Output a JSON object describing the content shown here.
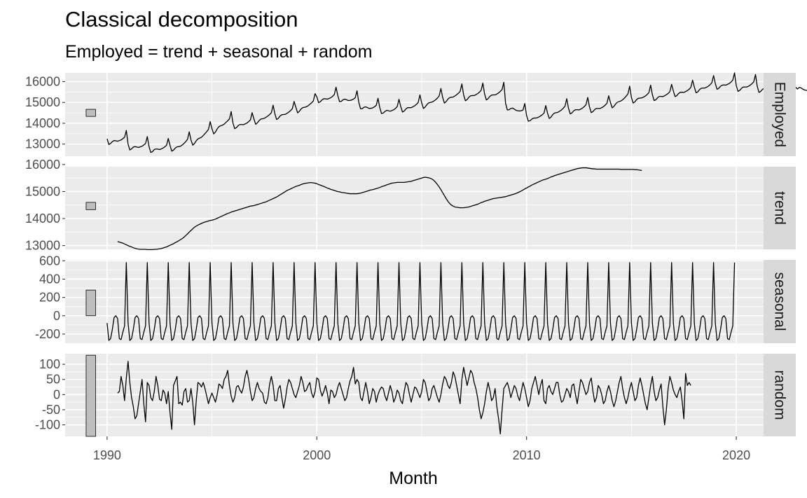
{
  "title": "Classical decomposition",
  "subtitle": "Employed = trend + seasonal + random",
  "chart_data": {
    "type": "line",
    "title": "Classical decomposition",
    "subtitle": "Employed = trend + seasonal + random",
    "xlabel": "Month",
    "xlim": [
      1988.0,
      2021.3
    ],
    "x_ticks": [
      1990,
      2000,
      2010,
      2020
    ],
    "x_tick_labels": [
      "1990",
      "2000",
      "2010",
      "2020"
    ],
    "grid": true,
    "panels": [
      {
        "name": "Employed",
        "ylim": [
          12420,
          16420
        ],
        "y_ticks": [
          13000,
          14000,
          15000,
          16000
        ],
        "y_tick_labels": [
          "13000",
          "14000",
          "15000",
          "16000"
        ],
        "scale_bar": [
          14330,
          14670
        ],
        "start": 1990.0,
        "step": 0.08333,
        "values": [
          13260,
          12980,
          13030,
          13120,
          13170,
          13160,
          13140,
          13170,
          13200,
          13260,
          13330,
          13660,
          13000,
          12720,
          12770,
          12860,
          12880,
          12860,
          12840,
          12870,
          12900,
          12960,
          13030,
          13360,
          12880,
          12600,
          12640,
          12740,
          12770,
          12760,
          12740,
          12770,
          12810,
          12870,
          12940,
          13270,
          12940,
          12660,
          12710,
          12810,
          12870,
          12880,
          12900,
          12960,
          13030,
          13120,
          13230,
          13590,
          13200,
          12950,
          13030,
          13160,
          13250,
          13290,
          13330,
          13410,
          13500,
          13600,
          13710,
          14080,
          13740,
          13490,
          13580,
          13730,
          13840,
          13880,
          13910,
          13960,
          14040,
          14120,
          14210,
          14560,
          14020,
          13740,
          13790,
          13890,
          13940,
          13940,
          13930,
          13970,
          14010,
          14080,
          14160,
          14510,
          14210,
          13950,
          14020,
          14130,
          14200,
          14220,
          14240,
          14290,
          14350,
          14420,
          14510,
          14870,
          14450,
          14180,
          14240,
          14350,
          14410,
          14420,
          14430,
          14480,
          14540,
          14610,
          14700,
          15050,
          14770,
          14500,
          14570,
          14690,
          14750,
          14770,
          14790,
          14840,
          14910,
          14980,
          15070,
          15420,
          15270,
          14990,
          15030,
          15130,
          15180,
          15170,
          15160,
          15190,
          15230,
          15290,
          15380,
          15730,
          15330,
          15040,
          15050,
          15130,
          15160,
          15130,
          15090,
          15100,
          15120,
          15160,
          15230,
          15560,
          15010,
          14700,
          14700,
          14770,
          14790,
          14750,
          14710,
          14720,
          14740,
          14790,
          14860,
          15200,
          14760,
          14470,
          14490,
          14570,
          14620,
          14600,
          14580,
          14610,
          14650,
          14710,
          14800,
          15150,
          14810,
          14540,
          14590,
          14690,
          14750,
          14750,
          14750,
          14790,
          14840,
          14910,
          15000,
          15360,
          14980,
          14710,
          14780,
          14900,
          14980,
          15000,
          15020,
          15070,
          15130,
          15210,
          15310,
          15670,
          15240,
          14970,
          15040,
          15160,
          15230,
          15250,
          15260,
          15310,
          15370,
          15440,
          15530,
          15890,
          15360,
          15080,
          15140,
          15250,
          15320,
          15330,
          15330,
          15370,
          15420,
          15490,
          15580,
          15930,
          15400,
          15120,
          15180,
          15290,
          15350,
          15360,
          15360,
          15400,
          15460,
          15530,
          15620,
          15970,
          14960,
          14640,
          14650,
          14710,
          14730,
          14680,
          14620,
          14600,
          14590,
          14600,
          14640,
          14950,
          14380,
          14100,
          14120,
          14200,
          14250,
          14250,
          14260,
          14300,
          14350,
          14410,
          14490,
          14850,
          14490,
          14230,
          14300,
          14420,
          14490,
          14510,
          14530,
          14580,
          14640,
          14720,
          14820,
          15180,
          14720,
          14450,
          14500,
          14600,
          14650,
          14650,
          14640,
          14680,
          14730,
          14800,
          14890,
          15240,
          14790,
          14510,
          14560,
          14660,
          14710,
          14710,
          14710,
          14750,
          14800,
          14870,
          14960,
          15320,
          15000,
          14740,
          14810,
          14930,
          15010,
          15040,
          15070,
          15130,
          15210,
          15300,
          15410,
          15780,
          15240,
          14970,
          15030,
          15140,
          15200,
          15210,
          15220,
          15260,
          15310,
          15380,
          15470,
          15830,
          15370,
          15090,
          15130,
          15230,
          15290,
          15290,
          15280,
          15320,
          15370,
          15430,
          15520,
          15870,
          15550,
          15280,
          15330,
          15430,
          15490,
          15490,
          15480,
          15520,
          15570,
          15630,
          15720,
          16070,
          15740,
          15460,
          15510,
          15620,
          15680,
          15690,
          15690,
          15730,
          15780,
          15850,
          15940,
          16290,
          15910,
          15630,
          15680,
          15780,
          15830,
          15840,
          15830,
          15870,
          15910,
          15980,
          16070,
          16420,
          15810,
          15530,
          15580,
          15680,
          15740,
          15740,
          15740,
          15780,
          15830,
          15900,
          15990,
          16340,
          15770,
          15480,
          15530,
          15630,
          15680,
          15680,
          15680,
          15720,
          15770,
          15830,
          15920,
          16270,
          15740,
          15460,
          15510,
          15610,
          15660,
          15660,
          15660,
          15700,
          15750,
          15810,
          15730,
          15640,
          15720,
          15700,
          15640,
          15600,
          15580,
          15580
        ]
      },
      {
        "name": "trend",
        "ylim": [
          12860,
          15920
        ],
        "y_ticks": [
          13000,
          14000,
          15000,
          16000
        ],
        "y_tick_labels": [
          "13000",
          "14000",
          "15000",
          "16000"
        ],
        "scale_bar": [
          14330,
          14600
        ],
        "start": 1990.5,
        "step": 0.08333,
        "values": [
          13150,
          13130,
          13110,
          13090,
          13060,
          13030,
          13000,
          12970,
          12950,
          12920,
          12900,
          12880,
          12870,
          12860,
          12860,
          12860,
          12860,
          12850,
          12850,
          12850,
          12850,
          12860,
          12860,
          12870,
          12880,
          12890,
          12910,
          12930,
          12950,
          12980,
          13010,
          13040,
          13070,
          13110,
          13140,
          13180,
          13220,
          13260,
          13310,
          13370,
          13430,
          13500,
          13560,
          13620,
          13680,
          13720,
          13760,
          13790,
          13820,
          13850,
          13870,
          13890,
          13910,
          13930,
          13940,
          13960,
          13980,
          14010,
          14040,
          14070,
          14100,
          14130,
          14160,
          14190,
          14210,
          14240,
          14260,
          14280,
          14300,
          14320,
          14340,
          14360,
          14380,
          14400,
          14420,
          14440,
          14460,
          14470,
          14480,
          14500,
          14520,
          14540,
          14560,
          14580,
          14600,
          14620,
          14650,
          14680,
          14710,
          14740,
          14770,
          14800,
          14840,
          14880,
          14920,
          14960,
          15000,
          15040,
          15070,
          15100,
          15130,
          15160,
          15190,
          15210,
          15230,
          15260,
          15280,
          15300,
          15310,
          15320,
          15330,
          15330,
          15320,
          15310,
          15290,
          15260,
          15240,
          15210,
          15190,
          15160,
          15130,
          15110,
          15080,
          15060,
          15040,
          15020,
          15000,
          14990,
          14970,
          14960,
          14950,
          14940,
          14930,
          14920,
          14920,
          14920,
          14920,
          14920,
          14930,
          14940,
          14960,
          14980,
          15000,
          15020,
          15040,
          15060,
          15070,
          15090,
          15110,
          15130,
          15150,
          15180,
          15200,
          15220,
          15250,
          15270,
          15290,
          15310,
          15320,
          15330,
          15340,
          15340,
          15340,
          15340,
          15340,
          15350,
          15360,
          15370,
          15380,
          15400,
          15420,
          15440,
          15460,
          15480,
          15500,
          15520,
          15530,
          15520,
          15510,
          15490,
          15460,
          15410,
          15340,
          15260,
          15170,
          15070,
          14960,
          14850,
          14740,
          14640,
          14560,
          14500,
          14460,
          14430,
          14420,
          14410,
          14400,
          14400,
          14400,
          14410,
          14420,
          14430,
          14450,
          14470,
          14490,
          14510,
          14530,
          14560,
          14590,
          14610,
          14640,
          14660,
          14680,
          14700,
          14720,
          14740,
          14750,
          14760,
          14770,
          14780,
          14790,
          14800,
          14810,
          14830,
          14850,
          14870,
          14890,
          14910,
          14930,
          14960,
          14990,
          15020,
          15060,
          15100,
          15130,
          15170,
          15200,
          15240,
          15270,
          15300,
          15330,
          15360,
          15390,
          15420,
          15440,
          15460,
          15480,
          15510,
          15540,
          15560,
          15590,
          15610,
          15630,
          15650,
          15670,
          15690,
          15710,
          15730,
          15750,
          15770,
          15790,
          15810,
          15830,
          15850,
          15860,
          15870,
          15880,
          15880,
          15880,
          15870,
          15860,
          15850,
          15840,
          15840,
          15830,
          15830,
          15830,
          15830,
          15830,
          15830,
          15830,
          15830,
          15830,
          15830,
          15830,
          15830,
          15830,
          15830,
          15820,
          15820,
          15820,
          15820,
          15820,
          15820,
          15820,
          15820,
          15810,
          15810,
          15800,
          15790,
          15780
        ]
      },
      {
        "name": "seasonal",
        "ylim": [
          -300,
          610
        ],
        "y_ticks": [
          -200,
          0,
          200,
          400,
          600
        ],
        "y_tick_labels": [
          "-200",
          "0",
          "200",
          "400",
          "600"
        ],
        "scale_bar": [
          0,
          280
        ],
        "start": 1990.0,
        "step": 0.08333,
        "pattern": [
          -80,
          -270,
          -250,
          -150,
          -20,
          0,
          -30,
          -250,
          -260,
          -180,
          -110,
          580
        ],
        "periods": 30
      },
      {
        "name": "random",
        "ylim": [
          -138,
          135
        ],
        "y_ticks": [
          -100,
          -50,
          0,
          50,
          100
        ],
        "y_tick_labels": [
          "-100",
          "-50",
          "0",
          "50",
          "100"
        ],
        "scale_bar": [
          -138,
          130
        ],
        "start": 1990.5,
        "step": 0.08333,
        "values": [
          5,
          10,
          60,
          30,
          -20,
          55,
          110,
          40,
          -10,
          -40,
          -80,
          -70,
          -30,
          10,
          50,
          -30,
          -90,
          40,
          30,
          -10,
          -20,
          10,
          60,
          30,
          -15,
          -20,
          15,
          5,
          -30,
          10,
          -60,
          -115,
          30,
          45,
          60,
          -30,
          -25,
          -35,
          10,
          20,
          -25,
          -20,
          20,
          -25,
          -100,
          -20,
          40,
          35,
          25,
          40,
          20,
          -5,
          -30,
          -10,
          5,
          -10,
          -25,
          0,
          35,
          30,
          20,
          50,
          60,
          80,
          30,
          -5,
          -25,
          -10,
          25,
          30,
          15,
          5,
          25,
          60,
          80,
          50,
          10,
          -20,
          -10,
          20,
          40,
          20,
          10,
          5,
          -25,
          -30,
          -10,
          35,
          60,
          30,
          -20,
          -20,
          20,
          30,
          -10,
          -45,
          -15,
          25,
          50,
          40,
          20,
          0,
          -10,
          10,
          30,
          60,
          40,
          10,
          15,
          30,
          40,
          5,
          -10,
          10,
          55,
          50,
          15,
          -5,
          10,
          30,
          5,
          -30,
          15,
          10,
          -10,
          0,
          25,
          40,
          20,
          0,
          -20,
          -10,
          20,
          45,
          60,
          90,
          35,
          50,
          40,
          -10,
          -20,
          10,
          40,
          10,
          -30,
          -10,
          20,
          10,
          -25,
          0,
          15,
          25,
          20,
          -5,
          -20,
          5,
          30,
          10,
          -25,
          -10,
          15,
          5,
          -20,
          -30,
          10,
          40,
          30,
          0,
          -25,
          0,
          25,
          20,
          5,
          -10,
          10,
          50,
          40,
          10,
          -20,
          -10,
          20,
          30,
          10,
          -10,
          -25,
          0,
          35,
          60,
          50,
          30,
          20,
          40,
          75,
          60,
          30,
          0,
          -30,
          50,
          90,
          60,
          30,
          55,
          80,
          70,
          40,
          20,
          -10,
          -50,
          -80,
          -60,
          -30,
          10,
          40,
          15,
          -20,
          -10,
          20,
          -40,
          -80,
          -130,
          -50,
          20,
          30,
          40,
          20,
          -10,
          10,
          30,
          20,
          -5,
          -20,
          10,
          40,
          20,
          -10,
          -40,
          -20,
          20,
          40,
          60,
          30,
          0,
          30,
          50,
          -20,
          -30,
          20,
          30,
          10,
          0,
          20,
          40,
          40,
          0,
          -25,
          -20,
          0,
          20,
          10,
          -10,
          30,
          35,
          0,
          -30,
          10,
          50,
          40,
          20,
          0,
          10,
          40,
          55,
          10,
          -25,
          -10,
          30,
          20,
          0,
          -30,
          -20,
          10,
          30,
          10,
          -20,
          -40,
          -20,
          10,
          40,
          60,
          20,
          -10,
          -30,
          -10,
          20,
          40,
          10,
          -20,
          -10,
          30,
          55,
          30,
          0,
          -30,
          -50,
          -10,
          30,
          60,
          10,
          -20,
          -10,
          15,
          35,
          -40,
          -100,
          -50,
          20,
          60,
          40,
          15,
          0,
          -10,
          10,
          25,
          -20,
          -80,
          70,
          30,
          40,
          30
        ]
      }
    ],
    "strip_labels": [
      "Employed",
      "trend",
      "seasonal",
      "random"
    ]
  }
}
